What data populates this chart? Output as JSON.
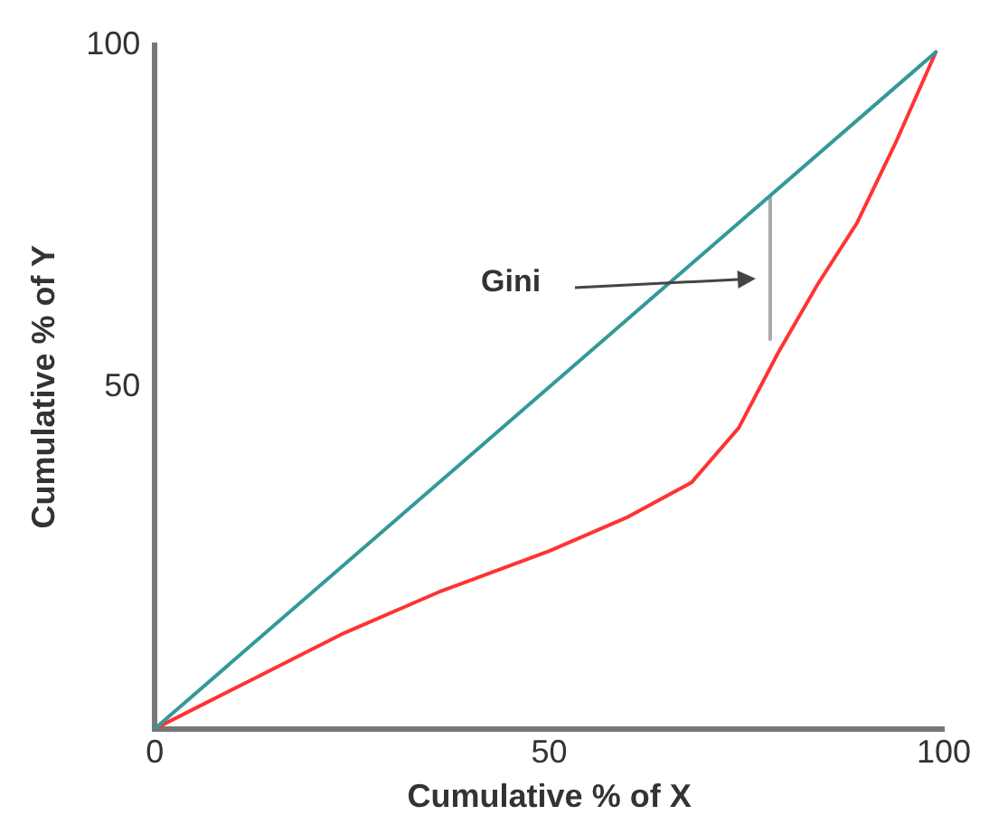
{
  "chart_data": {
    "type": "line",
    "xlabel": "Cumulative % of X",
    "ylabel": "Cumulative % of Y",
    "xlim": [
      0,
      100
    ],
    "ylim": [
      0,
      100
    ],
    "xticks": [
      0,
      50,
      100
    ],
    "yticks": [
      50,
      100
    ],
    "grid": false,
    "legend": false,
    "marker": "none",
    "line_style": "solid",
    "series": [
      {
        "color": "#339999",
        "x": [
          0,
          99
        ],
        "values": [
          0,
          99
        ]
      },
      {
        "color": "#ff3333",
        "x": [
          0,
          12,
          24,
          36,
          50,
          60,
          68,
          74,
          79,
          84,
          89,
          94,
          99
        ],
        "values": [
          0,
          7,
          14,
          20,
          26,
          31,
          36,
          44,
          55,
          65,
          74,
          86,
          99
        ]
      },
      {
        "color": "#aaaaaa",
        "x": [
          78,
          78
        ],
        "values": [
          78,
          57
        ]
      }
    ],
    "annotations": [
      "Gini"
    ]
  }
}
